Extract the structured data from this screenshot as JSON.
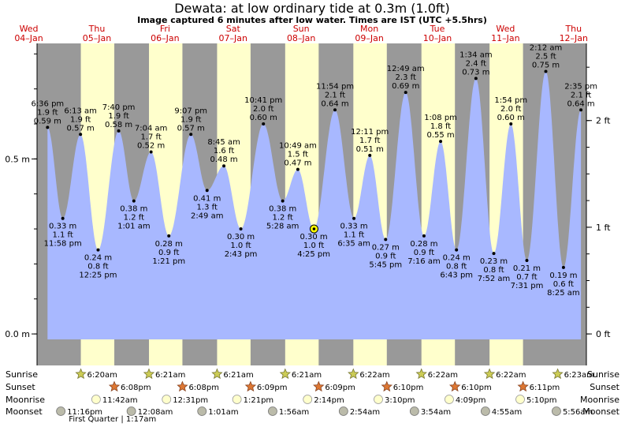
{
  "page": {
    "title": "Dewata: at low  ordinary tide at 0.3m (1.0ft)",
    "subtitle": "Image captured 6 minutes after low water. Times are IST (UTC +5.5hrs)"
  },
  "colors": {
    "night": "#999999",
    "day": "#ffffcc",
    "tide": "#a8b8ff",
    "day_label": "#cc0000",
    "current_marker": "#ffff00"
  },
  "chart_data": {
    "type": "area",
    "title": "Dewata: at low  ordinary tide at 0.3m (1.0ft)",
    "subtitle": "Image captured 6 minutes after low water. Times are IST (UTC +5.5hrs)",
    "time_unit": "hours since 04-Jan 00:00 IST",
    "x_range": [
      14.9,
      208.5
    ],
    "ylim_m": [
      -0.09,
      0.83
    ],
    "y_left_ticks": [
      {
        "v": 0.0,
        "label": "0.0 m"
      },
      {
        "v": 0.5,
        "label": "0.5 m"
      }
    ],
    "y_right_ticks": [
      {
        "v": 0.0,
        "label": "0 ft"
      },
      {
        "v": 0.3048,
        "label": "1 ft"
      },
      {
        "v": 0.6096,
        "label": "2 ft"
      }
    ],
    "days": [
      {
        "dow": "Wed",
        "date": "04–Jan"
      },
      {
        "dow": "Thu",
        "date": "05–Jan"
      },
      {
        "dow": "Fri",
        "date": "06–Jan"
      },
      {
        "dow": "Sat",
        "date": "07–Jan"
      },
      {
        "dow": "Sun",
        "date": "08–Jan"
      },
      {
        "dow": "Mon",
        "date": "09–Jan"
      },
      {
        "dow": "Tue",
        "date": "10–Jan"
      },
      {
        "dow": "Wed",
        "date": "11–Jan"
      },
      {
        "dow": "Thu",
        "date": "12–Jan"
      }
    ],
    "daylight": [
      [
        30.33,
        42.13
      ],
      [
        54.35,
        66.13
      ],
      [
        78.35,
        90.15
      ],
      [
        102.35,
        114.15
      ],
      [
        126.37,
        138.17
      ],
      [
        150.37,
        162.17
      ],
      [
        174.37,
        186.17
      ]
    ],
    "tides": [
      {
        "t": 18.6,
        "h": 0.59,
        "time": "6:36 pm",
        "ft": "1.9 ft",
        "m": "0.59 m",
        "kind": "high"
      },
      {
        "t": 23.97,
        "h": 0.33,
        "time": "11:58 pm",
        "ft": "1.1 ft",
        "m": "0.33 m",
        "kind": "low"
      },
      {
        "t": 30.22,
        "h": 0.57,
        "time": "6:13 am",
        "ft": "1.9 ft",
        "m": "0.57 m",
        "kind": "high"
      },
      {
        "t": 36.42,
        "h": 0.24,
        "time": "12:25 pm",
        "ft": "0.8 ft",
        "m": "0.24 m",
        "kind": "low"
      },
      {
        "t": 43.67,
        "h": 0.58,
        "time": "7:40 pm",
        "ft": "1.9 ft",
        "m": "0.58 m",
        "kind": "high"
      },
      {
        "t": 49.02,
        "h": 0.38,
        "time": "1:01 am",
        "ft": "1.2 ft",
        "m": "0.38 m",
        "kind": "low"
      },
      {
        "t": 55.07,
        "h": 0.52,
        "time": "7:04 am",
        "ft": "1.7 ft",
        "m": "0.52 m",
        "kind": "high"
      },
      {
        "t": 61.35,
        "h": 0.28,
        "time": "1:21 pm",
        "ft": "0.9 ft",
        "m": "0.28 m",
        "kind": "low"
      },
      {
        "t": 69.12,
        "h": 0.57,
        "time": "9:07 pm",
        "ft": "1.9 ft",
        "m": "0.57 m",
        "kind": "high"
      },
      {
        "t": 74.82,
        "h": 0.41,
        "time": "2:49 am",
        "ft": "1.3 ft",
        "m": "0.41 m",
        "kind": "low"
      },
      {
        "t": 80.75,
        "h": 0.48,
        "time": "8:45 am",
        "ft": "1.6 ft",
        "m": "0.48 m",
        "kind": "high"
      },
      {
        "t": 86.72,
        "h": 0.3,
        "time": "2:43 pm",
        "ft": "1.0 ft",
        "m": "0.30 m",
        "kind": "low"
      },
      {
        "t": 94.68,
        "h": 0.6,
        "time": "10:41 pm",
        "ft": "2.0 ft",
        "m": "0.60 m",
        "kind": "high"
      },
      {
        "t": 101.47,
        "h": 0.38,
        "time": "5:28 am",
        "ft": "1.2 ft",
        "m": "0.38 m",
        "kind": "low"
      },
      {
        "t": 106.82,
        "h": 0.47,
        "time": "10:49 am",
        "ft": "1.5 ft",
        "m": "0.47 m",
        "kind": "high"
      },
      {
        "t": 112.42,
        "h": 0.3,
        "time": "4:25 pm",
        "ft": "1.0 ft",
        "m": "0.30 m",
        "kind": "low"
      },
      {
        "t": 119.9,
        "h": 0.64,
        "time": "11:54 pm",
        "ft": "2.1 ft",
        "m": "0.64 m",
        "kind": "high"
      },
      {
        "t": 126.58,
        "h": 0.33,
        "time": "6:35 am",
        "ft": "1.1 ft",
        "m": "0.33 m",
        "kind": "low"
      },
      {
        "t": 132.18,
        "h": 0.51,
        "time": "12:11 pm",
        "ft": "1.7 ft",
        "m": "0.51 m",
        "kind": "high"
      },
      {
        "t": 137.75,
        "h": 0.27,
        "time": "5:45 pm",
        "ft": "0.9 ft",
        "m": "0.27 m",
        "kind": "low"
      },
      {
        "t": 144.82,
        "h": 0.69,
        "time": "12:49 am",
        "ft": "2.3 ft",
        "m": "0.69 m",
        "kind": "high"
      },
      {
        "t": 151.27,
        "h": 0.28,
        "time": "7:16 am",
        "ft": "0.9 ft",
        "m": "0.28 m",
        "kind": "low"
      },
      {
        "t": 157.13,
        "h": 0.55,
        "time": "1:08 pm",
        "ft": "1.8 ft",
        "m": "0.55 m",
        "kind": "high"
      },
      {
        "t": 162.72,
        "h": 0.24,
        "time": "6:43 pm",
        "ft": "0.8 ft",
        "m": "0.24 m",
        "kind": "low"
      },
      {
        "t": 169.57,
        "h": 0.73,
        "time": "1:34 am",
        "ft": "2.4 ft",
        "m": "0.73 m",
        "kind": "high"
      },
      {
        "t": 175.87,
        "h": 0.23,
        "time": "7:52 am",
        "ft": "0.8 ft",
        "m": "0.23 m",
        "kind": "low"
      },
      {
        "t": 181.9,
        "h": 0.6,
        "time": "1:54 pm",
        "ft": "2.0 ft",
        "m": "0.60 m",
        "kind": "high"
      },
      {
        "t": 187.52,
        "h": 0.21,
        "time": "7:31 pm",
        "ft": "0.7 ft",
        "m": "0.21 m",
        "kind": "low"
      },
      {
        "t": 194.2,
        "h": 0.75,
        "time": "2:12 am",
        "ft": "2.5 ft",
        "m": "0.75 m",
        "kind": "high"
      },
      {
        "t": 200.42,
        "h": 0.19,
        "time": "8:25 am",
        "ft": "0.6 ft",
        "m": "0.19 m",
        "kind": "low"
      },
      {
        "t": 206.58,
        "h": 0.64,
        "time": "2:35 pm",
        "ft": "2.1 ft",
        "m": "0.64 m",
        "kind": "high"
      }
    ],
    "current": {
      "t": 112.52,
      "h": 0.3
    },
    "rows": [
      {
        "label": "Sunrise",
        "kind": "sunrise",
        "events": [
          {
            "t": 30.33,
            "text": "6:20am"
          },
          {
            "t": 54.35,
            "text": "6:21am"
          },
          {
            "t": 78.35,
            "text": "6:21am"
          },
          {
            "t": 102.35,
            "text": "6:21am"
          },
          {
            "t": 126.37,
            "text": "6:22am"
          },
          {
            "t": 150.37,
            "text": "6:22am"
          },
          {
            "t": 174.37,
            "text": "6:22am"
          },
          {
            "t": 198.38,
            "text": "6:23am"
          }
        ]
      },
      {
        "label": "Sunset",
        "kind": "sunset",
        "events": [
          {
            "t": 42.13,
            "text": "6:08pm"
          },
          {
            "t": 66.13,
            "text": "6:08pm"
          },
          {
            "t": 90.15,
            "text": "6:09pm"
          },
          {
            "t": 114.15,
            "text": "6:09pm"
          },
          {
            "t": 138.17,
            "text": "6:10pm"
          },
          {
            "t": 162.17,
            "text": "6:10pm"
          },
          {
            "t": 186.18,
            "text": "6:11pm"
          }
        ]
      },
      {
        "label": "Moonrise",
        "kind": "moonrise",
        "events": [
          {
            "t": 35.7,
            "text": "11:42am"
          },
          {
            "t": 60.52,
            "text": "12:31pm"
          },
          {
            "t": 85.35,
            "text": "1:21pm"
          },
          {
            "t": 110.23,
            "text": "2:14pm"
          },
          {
            "t": 135.17,
            "text": "3:10pm"
          },
          {
            "t": 160.15,
            "text": "4:09pm"
          },
          {
            "t": 185.17,
            "text": "5:10pm"
          }
        ]
      },
      {
        "label": "Moonset",
        "kind": "moonset",
        "events": [
          {
            "t": 23.27,
            "text": "11:16pm"
          },
          {
            "t": 48.13,
            "text": "12:08am"
          },
          {
            "t": 73.02,
            "text": "1:01am"
          },
          {
            "t": 97.93,
            "text": "1:56am"
          },
          {
            "t": 122.9,
            "text": "2:54am"
          },
          {
            "t": 147.9,
            "text": "3:54am"
          },
          {
            "t": 172.92,
            "text": "4:55am"
          },
          {
            "t": 197.93,
            "text": "5:56am"
          }
        ]
      }
    ],
    "moon_phase": {
      "t": 49.0,
      "text": "First Quarter | 1:17am"
    }
  }
}
